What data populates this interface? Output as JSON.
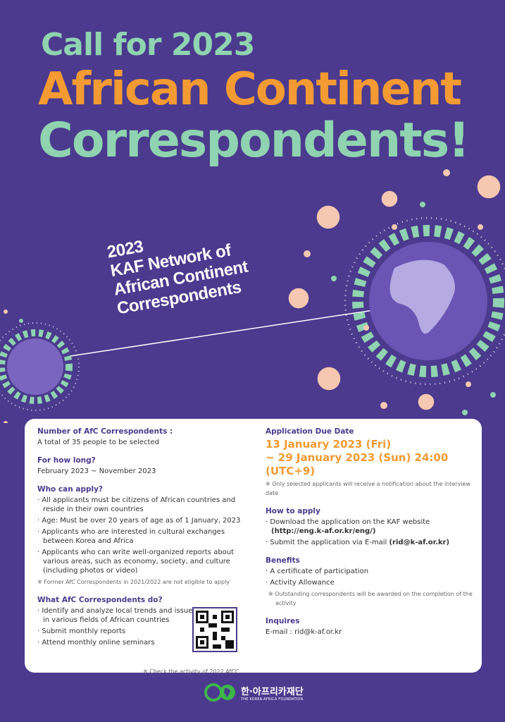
{
  "header": {
    "line1": "Call for 2023",
    "line2": "African Continent",
    "line3": "Correspondents!"
  },
  "subtitle": [
    "2023",
    "KAF Network of",
    "African Continent",
    "Correspondents"
  ],
  "colors": {
    "background": "#4b3a8e",
    "green": "#8fd3b0",
    "orange": "#f39a33",
    "peach": "#f6c7b1"
  },
  "left": {
    "number": {
      "title": "Number of AfC Correspondents :",
      "text": "A total of 35 people to be selected"
    },
    "duration": {
      "title": "For how long?",
      "text": "February 2023 ~ November 2023"
    },
    "who": {
      "title": "Who can apply?",
      "items": [
        "All applicants must be citizens of African countries and reside in their own countries",
        "Age: Must be over 20 years of age as of 1 January, 2023",
        "Applicants who are interested in cultural exchanges between Korea and Africa",
        "Applicants who can write well-organized reports about various areas, such as economy, society, and culture (including photos or video)"
      ],
      "note": "※ Former AfC Correspondents in 2021/2022 are not eligible to apply"
    },
    "what": {
      "title": "What AfC Correspondents do?",
      "items": [
        "Identify and analyze local trends and issues in various fields of African countries",
        "Submit monthly reports",
        "Attend monthly online seminars"
      ],
      "qr_note": "※ Check the activity of 2022 AfCC"
    }
  },
  "right": {
    "due": {
      "title": "Application Due Date",
      "line1": "13 January 2023 (Fri)",
      "line2": "~ 29 January 2023 (Sun) 24:00 (UTC+9)",
      "note": "※ Only selected applicants will receive a notification about the interview date"
    },
    "how": {
      "title": "How to apply",
      "item1": "Download the application on the KAF website",
      "url": "(http://eng.k-af.or.kr/eng/)",
      "item2": "Submit the application via E-mail",
      "email": "(rid@k-af.or.kr)"
    },
    "benefits": {
      "title": "Benefits",
      "items": [
        "A certificate of participation",
        "Activity Allowance"
      ],
      "note": "※ Outstanding correspondents will be awarded on the completion of the activity"
    },
    "inquires": {
      "title": "Inquires",
      "text": "E-mail : rid@k-af.or.kr"
    }
  },
  "footer": {
    "logo_korean": "한·아프리카재단",
    "logo_english": "THE KOREA-AFRICA FOUNDATION"
  }
}
